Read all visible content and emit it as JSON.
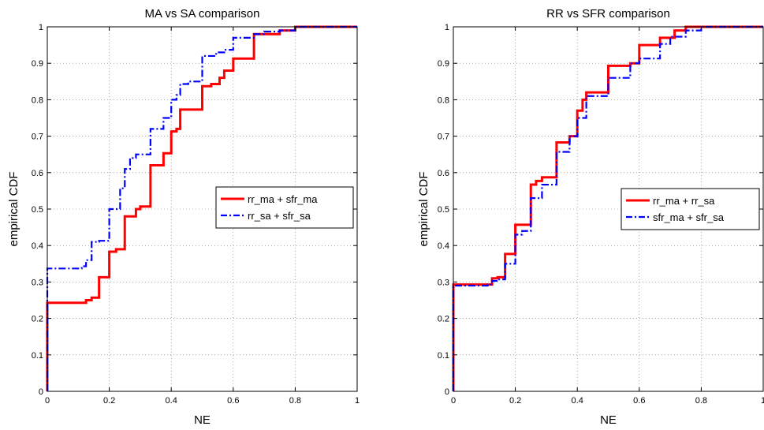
{
  "chart_data": [
    {
      "type": "line",
      "title": "MA vs SA comparison",
      "xlabel": "NE",
      "ylabel": "empirical CDF",
      "xlim": [
        0,
        1
      ],
      "ylim": [
        0,
        1
      ],
      "xticks": [
        "0",
        "0.2",
        "0.4",
        "0.6",
        "0.8",
        "1"
      ],
      "yticks": [
        "0",
        "0.1",
        "0.2",
        "0.3",
        "0.4",
        "0.5",
        "0.6",
        "0.7",
        "0.8",
        "0.9",
        "1"
      ],
      "grid": true,
      "legend_position": "right",
      "step": true,
      "series": [
        {
          "name": "rr_ma + sfr_ma",
          "color": "#ff0000",
          "style": "solid",
          "x": [
            0,
            0,
            0.125,
            0.143,
            0.167,
            0.2,
            0.222,
            0.25,
            0.286,
            0.3,
            0.333,
            0.375,
            0.4,
            0.417,
            0.429,
            0.5,
            0.529,
            0.556,
            0.571,
            0.6,
            0.667,
            0.75,
            0.8,
            1
          ],
          "y": [
            0,
            0.243,
            0.25,
            0.257,
            0.313,
            0.383,
            0.39,
            0.48,
            0.5,
            0.507,
            0.62,
            0.653,
            0.713,
            0.72,
            0.773,
            0.837,
            0.843,
            0.86,
            0.88,
            0.913,
            0.98,
            0.99,
            1,
            1
          ]
        },
        {
          "name": "rr_sa + sfr_sa",
          "color": "#0000ff",
          "style": "dashdot",
          "x": [
            0,
            0,
            0.111,
            0.125,
            0.143,
            0.167,
            0.2,
            0.222,
            0.235,
            0.25,
            0.267,
            0.286,
            0.333,
            0.375,
            0.4,
            0.417,
            0.429,
            0.455,
            0.5,
            0.545,
            0.571,
            0.6,
            0.667,
            0.7,
            0.75,
            0.8,
            1
          ],
          "y": [
            0,
            0.337,
            0.343,
            0.36,
            0.41,
            0.413,
            0.5,
            0.5,
            0.557,
            0.61,
            0.64,
            0.65,
            0.72,
            0.75,
            0.8,
            0.813,
            0.843,
            0.85,
            0.92,
            0.93,
            0.937,
            0.97,
            0.98,
            0.987,
            0.99,
            1,
            1
          ]
        }
      ]
    },
    {
      "type": "line",
      "title": "RR vs SFR comparison",
      "xlabel": "NE",
      "ylabel": "empirical CDF",
      "xlim": [
        0,
        1
      ],
      "ylim": [
        0,
        1
      ],
      "xticks": [
        "0",
        "0.2",
        "0.4",
        "0.6",
        "0.8",
        "1"
      ],
      "yticks": [
        "0",
        "0.1",
        "0.2",
        "0.3",
        "0.4",
        "0.5",
        "0.6",
        "0.7",
        "0.8",
        "0.9",
        "1"
      ],
      "grid": true,
      "legend_position": "right",
      "step": true,
      "series": [
        {
          "name": "rr_ma + rr_sa",
          "color": "#ff0000",
          "style": "solid",
          "x": [
            0,
            0,
            0.125,
            0.143,
            0.167,
            0.2,
            0.25,
            0.267,
            0.286,
            0.333,
            0.375,
            0.4,
            0.417,
            0.429,
            0.5,
            0.571,
            0.6,
            0.667,
            0.714,
            0.75,
            1
          ],
          "y": [
            0,
            0.293,
            0.31,
            0.313,
            0.377,
            0.457,
            0.567,
            0.577,
            0.587,
            0.683,
            0.7,
            0.77,
            0.8,
            0.82,
            0.893,
            0.9,
            0.95,
            0.97,
            0.99,
            1,
            1
          ]
        },
        {
          "name": "sfr_ma + sfr_sa",
          "color": "#0000ff",
          "style": "dashdot",
          "x": [
            0,
            0,
            0.111,
            0.125,
            0.143,
            0.167,
            0.2,
            0.222,
            0.25,
            0.286,
            0.333,
            0.375,
            0.4,
            0.429,
            0.5,
            0.571,
            0.6,
            0.667,
            0.7,
            0.75,
            0.8,
            1
          ],
          "y": [
            0,
            0.29,
            0.293,
            0.303,
            0.307,
            0.35,
            0.43,
            0.44,
            0.53,
            0.567,
            0.657,
            0.7,
            0.75,
            0.81,
            0.86,
            0.9,
            0.913,
            0.953,
            0.973,
            0.99,
            1,
            1
          ]
        }
      ]
    }
  ]
}
